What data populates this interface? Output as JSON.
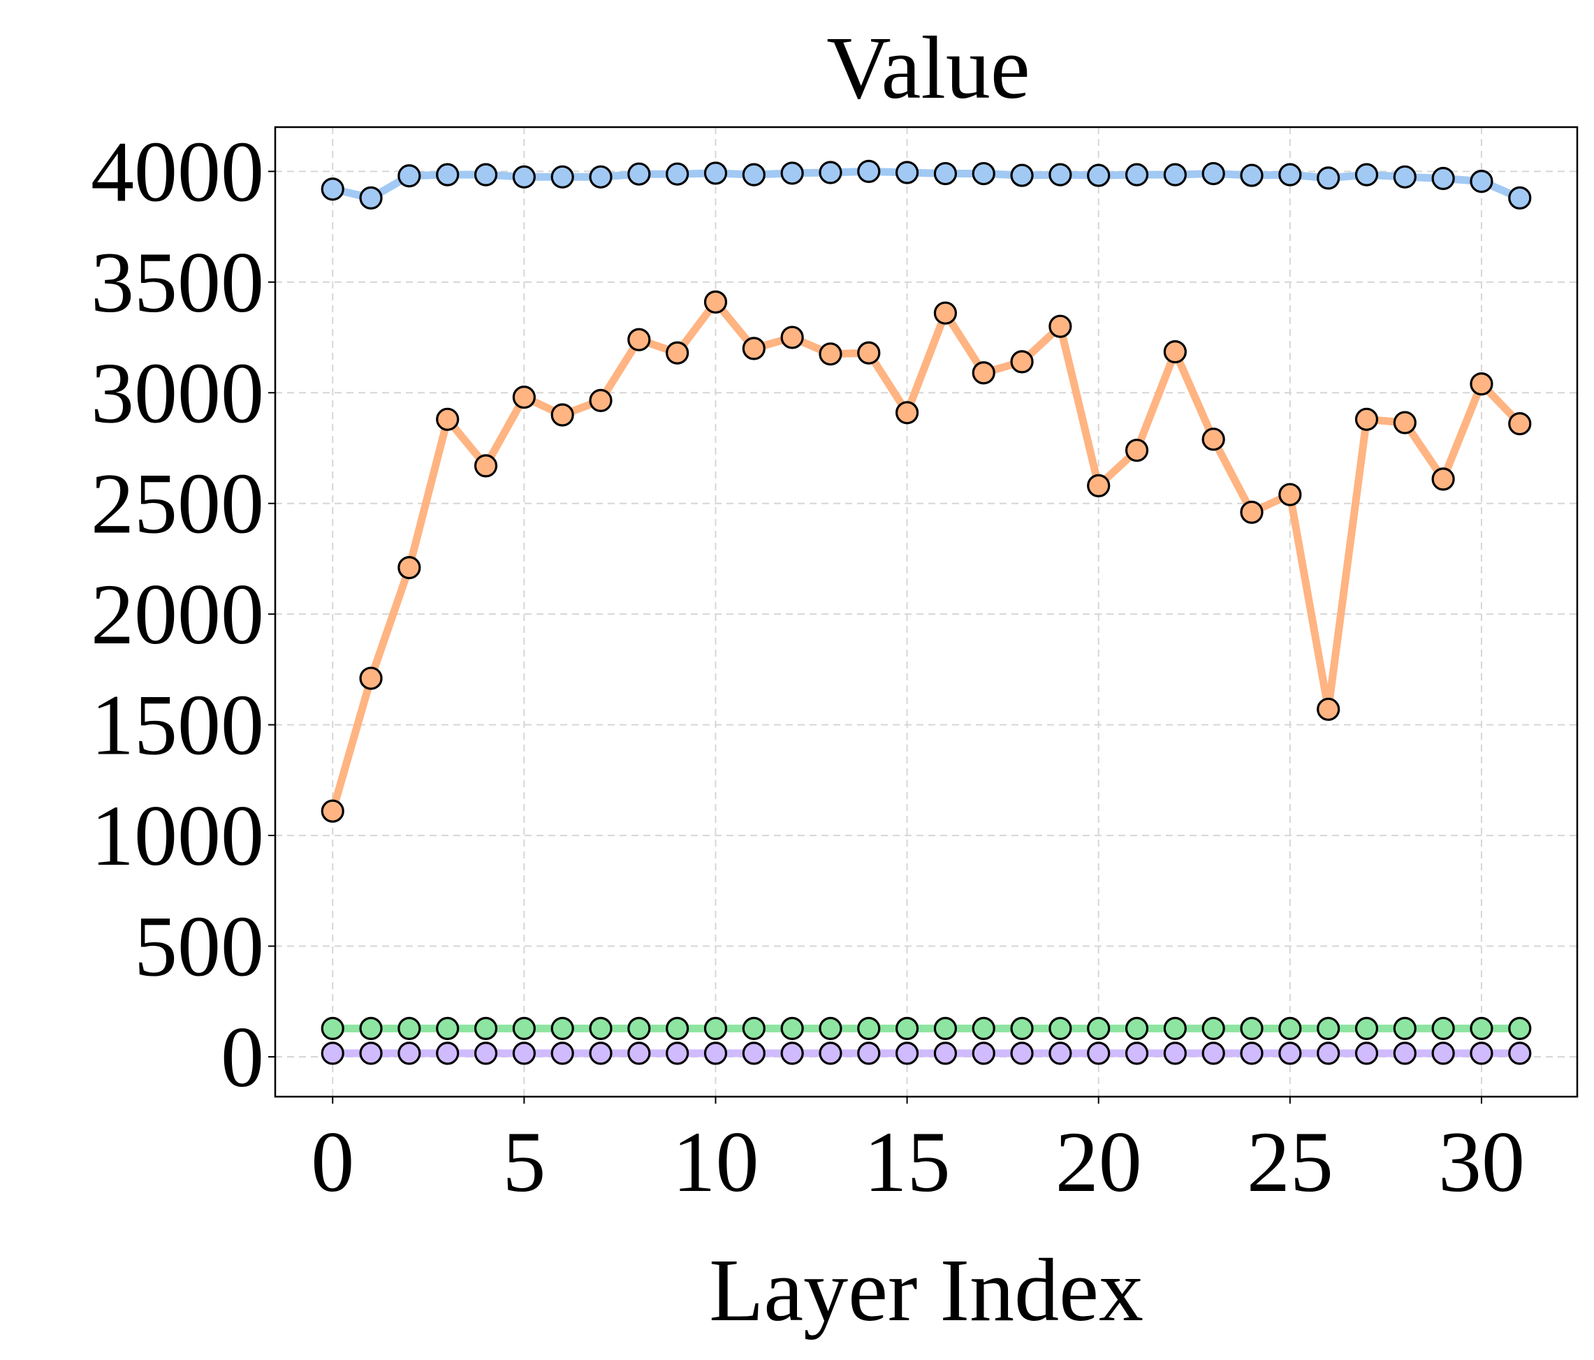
{
  "chart_data": {
    "type": "line",
    "title": "Value",
    "xlabel": "Layer Index",
    "ylabel": "",
    "xlim": [
      -1.5,
      32.5
    ],
    "ylim": [
      -180,
      4200
    ],
    "xticks": [
      0,
      5,
      10,
      15,
      20,
      25,
      30
    ],
    "yticks": [
      0,
      500,
      1000,
      1500,
      2000,
      2500,
      3000,
      3500,
      4000
    ],
    "grid": true,
    "legend": "none",
    "x": [
      0,
      1,
      2,
      3,
      4,
      5,
      6,
      7,
      8,
      9,
      10,
      11,
      12,
      13,
      14,
      15,
      16,
      17,
      18,
      19,
      20,
      21,
      22,
      23,
      24,
      25,
      26,
      27,
      28,
      29,
      30,
      31
    ],
    "series": [
      {
        "color": "#a1c9f4",
        "values": [
          3920,
          3880,
          3980,
          3985,
          3985,
          3975,
          3975,
          3975,
          3988,
          3988,
          3992,
          3985,
          3992,
          3995,
          4000,
          3995,
          3990,
          3990,
          3982,
          3985,
          3982,
          3985,
          3985,
          3990,
          3982,
          3985,
          3970,
          3985,
          3975,
          3968,
          3955,
          3880
        ]
      },
      {
        "color": "#ffb482",
        "values": [
          1110,
          1710,
          2210,
          2880,
          2670,
          2980,
          2900,
          2965,
          3240,
          3180,
          3410,
          3200,
          3250,
          3175,
          3180,
          2910,
          3360,
          3090,
          3140,
          3300,
          2580,
          2740,
          3185,
          2790,
          2460,
          2540,
          1570,
          2880,
          2865,
          2610,
          3040,
          2860
        ]
      },
      {
        "color": "#8de5a1",
        "values": [
          128,
          128,
          128,
          128,
          128,
          128,
          128,
          128,
          128,
          128,
          128,
          128,
          128,
          128,
          128,
          128,
          128,
          128,
          128,
          128,
          128,
          128,
          128,
          128,
          128,
          128,
          128,
          128,
          128,
          128,
          128,
          128
        ]
      },
      {
        "color": "#d0bbff",
        "values": [
          16,
          16,
          16,
          16,
          16,
          16,
          16,
          16,
          16,
          16,
          16,
          16,
          16,
          16,
          16,
          16,
          16,
          16,
          16,
          16,
          16,
          16,
          16,
          16,
          16,
          16,
          16,
          16,
          16,
          16,
          16,
          16
        ]
      }
    ]
  }
}
